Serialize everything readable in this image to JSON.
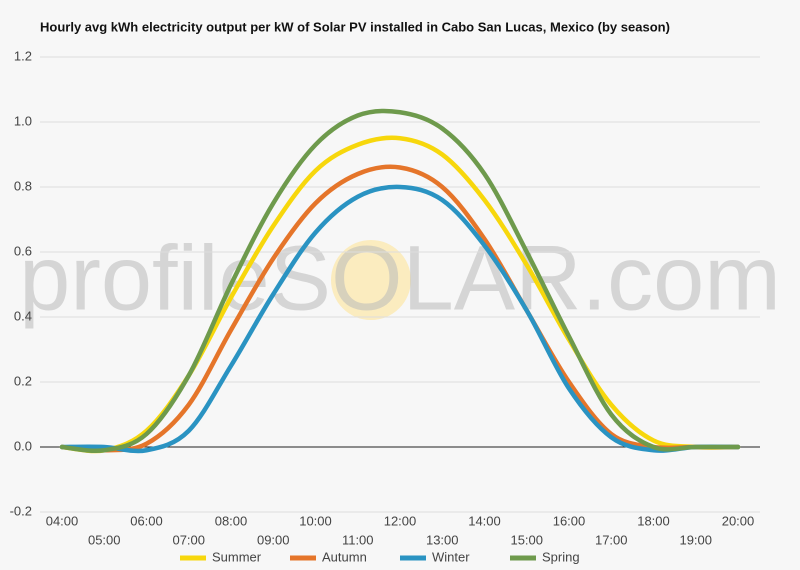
{
  "chart_data": {
    "type": "line",
    "title": "Hourly avg kWh electricity output per kW of Solar PV installed in Cabo San Lucas, Mexico (by season)",
    "watermark": "profileSOLAR.com",
    "categories": [
      "04:00",
      "05:00",
      "06:00",
      "07:00",
      "08:00",
      "09:00",
      "10:00",
      "11:00",
      "12:00",
      "13:00",
      "14:00",
      "15:00",
      "16:00",
      "17:00",
      "18:00",
      "19:00",
      "20:00"
    ],
    "series": [
      {
        "name": "Summer",
        "color": "#f7d70c",
        "values": [
          0,
          -0.01,
          0.05,
          0.22,
          0.46,
          0.68,
          0.85,
          0.93,
          0.95,
          0.9,
          0.76,
          0.56,
          0.33,
          0.13,
          0.02,
          0,
          0
        ]
      },
      {
        "name": "Autumn",
        "color": "#e5752a",
        "values": [
          0,
          -0.01,
          0.01,
          0.13,
          0.36,
          0.58,
          0.75,
          0.84,
          0.86,
          0.8,
          0.64,
          0.42,
          0.2,
          0.04,
          0,
          0,
          0
        ]
      },
      {
        "name": "Winter",
        "color": "#2a93c2",
        "values": [
          0,
          0,
          -0.01,
          0.05,
          0.25,
          0.47,
          0.66,
          0.77,
          0.8,
          0.76,
          0.62,
          0.42,
          0.18,
          0.03,
          -0.01,
          0,
          0
        ]
      },
      {
        "name": "Spring",
        "color": "#6e9a4c",
        "values": [
          0,
          -0.01,
          0.04,
          0.22,
          0.5,
          0.75,
          0.93,
          1.02,
          1.03,
          0.98,
          0.84,
          0.6,
          0.34,
          0.1,
          0,
          0,
          0
        ]
      }
    ],
    "ylim": [
      -0.2,
      1.2
    ],
    "yticks": [
      -0.2,
      {
        "value": 0,
        "label": "0.0"
      },
      0.2,
      0.4,
      0.6,
      0.8,
      {
        "value": 1,
        "label": "1.0"
      },
      1.2
    ],
    "grid": true,
    "legend": "bottom"
  }
}
